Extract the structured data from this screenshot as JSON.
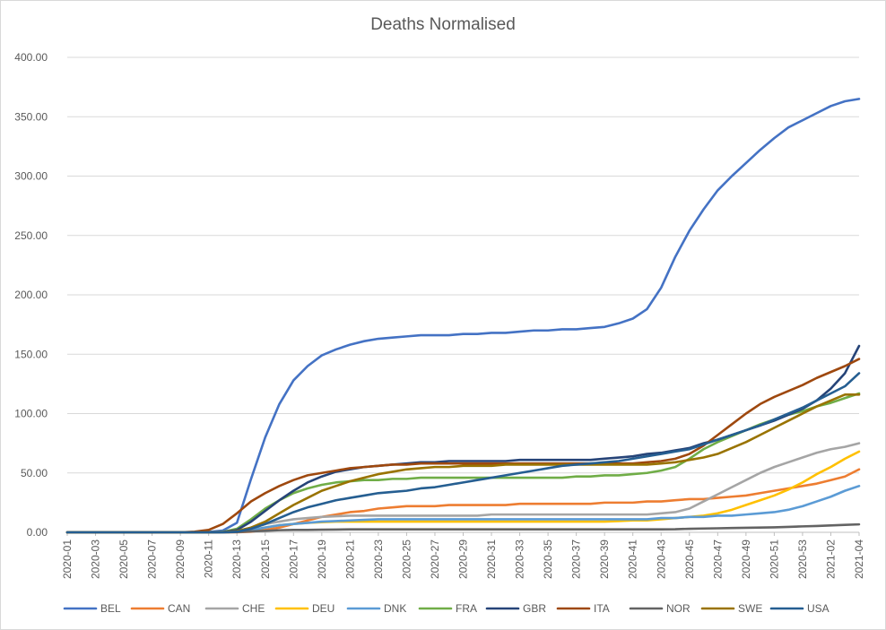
{
  "chart_data": {
    "type": "line",
    "title": "Deaths Normalised",
    "xlabel": "",
    "ylabel": "",
    "ylim": [
      0,
      400
    ],
    "y_ticks": [
      "0.00",
      "50.00",
      "100.00",
      "150.00",
      "200.00",
      "250.00",
      "300.00",
      "350.00",
      "400.00"
    ],
    "grid": "horizontal",
    "legend_position": "bottom",
    "x": [
      "2020-01",
      "2020-02",
      "2020-03",
      "2020-04",
      "2020-05",
      "2020-06",
      "2020-07",
      "2020-08",
      "2020-09",
      "2020-10",
      "2020-11",
      "2020-12",
      "2020-13",
      "2020-14",
      "2020-15",
      "2020-16",
      "2020-17",
      "2020-18",
      "2020-19",
      "2020-20",
      "2020-21",
      "2020-22",
      "2020-23",
      "2020-24",
      "2020-25",
      "2020-26",
      "2020-27",
      "2020-28",
      "2020-29",
      "2020-30",
      "2020-31",
      "2020-32",
      "2020-33",
      "2020-34",
      "2020-35",
      "2020-36",
      "2020-37",
      "2020-38",
      "2020-39",
      "2020-40",
      "2020-41",
      "2020-42",
      "2020-43",
      "2020-44",
      "2020-45",
      "2020-46",
      "2020-47",
      "2020-48",
      "2020-49",
      "2020-50",
      "2020-51",
      "2020-52",
      "2020-53",
      "2021-01",
      "2021-02",
      "2021-03",
      "2021-04"
    ],
    "x_tick_labels": [
      "2020-01",
      "2020-03",
      "2020-05",
      "2020-07",
      "2020-09",
      "2020-11",
      "2020-13",
      "2020-15",
      "2020-17",
      "2020-19",
      "2020-21",
      "2020-23",
      "2020-25",
      "2020-27",
      "2020-29",
      "2020-31",
      "2020-33",
      "2020-35",
      "2020-37",
      "2020-39",
      "2020-41",
      "2020-43",
      "2020-45",
      "2020-47",
      "2020-49",
      "2020-51",
      "2020-53",
      "2021-02",
      "2021-04"
    ],
    "series": [
      {
        "name": "BEL",
        "color": "#4472C4",
        "values": [
          0,
          0,
          0,
          0,
          0,
          0,
          0,
          0,
          0,
          0,
          0.3,
          1.5,
          8,
          45,
          80,
          108,
          128,
          140,
          149,
          154,
          158,
          161,
          163,
          164,
          165,
          166,
          166,
          166,
          167,
          167,
          168,
          168,
          169,
          170,
          170,
          171,
          171,
          172,
          173,
          176,
          180,
          188,
          206,
          232,
          254,
          272,
          288,
          300,
          311,
          322,
          332,
          341,
          347,
          353,
          359,
          363,
          365
        ]
      },
      {
        "name": "CAN",
        "color": "#ED7D31",
        "values": [
          0,
          0,
          0,
          0,
          0,
          0,
          0,
          0,
          0,
          0,
          0,
          0,
          0,
          0.5,
          2,
          4,
          7,
          10,
          13,
          15,
          17,
          18,
          20,
          21,
          22,
          22,
          22,
          23,
          23,
          23,
          23,
          23,
          24,
          24,
          24,
          24,
          24,
          24,
          25,
          25,
          25,
          26,
          26,
          27,
          28,
          28,
          29,
          30,
          31,
          33,
          35,
          37,
          39,
          41,
          44,
          47,
          53
        ]
      },
      {
        "name": "CHE",
        "color": "#A5A5A5",
        "values": [
          0,
          0,
          0,
          0,
          0,
          0,
          0,
          0,
          0,
          0,
          0,
          0.2,
          1,
          4,
          7,
          9,
          11,
          12,
          13,
          13.5,
          14,
          14,
          14,
          14,
          14,
          14,
          14,
          14,
          14,
          14,
          15,
          15,
          15,
          15,
          15,
          15,
          15,
          15,
          15,
          15,
          15,
          15,
          16,
          17,
          20,
          26,
          32,
          38,
          44,
          50,
          55,
          59,
          63,
          67,
          70,
          72,
          75
        ]
      },
      {
        "name": "DEU",
        "color": "#FFC000",
        "values": [
          0,
          0,
          0,
          0,
          0,
          0,
          0,
          0,
          0,
          0,
          0,
          0,
          0.5,
          2,
          4,
          6,
          7,
          8,
          8.5,
          9,
          9,
          9,
          9,
          9,
          9,
          9,
          9,
          9,
          9,
          9,
          9,
          9,
          9,
          9,
          9,
          9,
          9,
          9,
          9,
          9.5,
          10,
          10,
          11,
          12,
          13,
          14,
          16,
          19,
          23,
          27,
          31,
          36,
          42,
          49,
          55,
          62,
          68
        ]
      },
      {
        "name": "DNK",
        "color": "#5B9BD5",
        "values": [
          0,
          0,
          0,
          0,
          0,
          0,
          0,
          0,
          0,
          0,
          0,
          0,
          0.5,
          2,
          4,
          6,
          7,
          8,
          9,
          9.5,
          10,
          10.5,
          11,
          11,
          11,
          11,
          11,
          11,
          11,
          11,
          11,
          11,
          11,
          11,
          11,
          11,
          11,
          11,
          11,
          11,
          11,
          11,
          12,
          12,
          13,
          13,
          14,
          14,
          15,
          16,
          17,
          19,
          22,
          26,
          30,
          35,
          39
        ]
      },
      {
        "name": "FRA",
        "color": "#70AD47",
        "values": [
          0,
          0,
          0,
          0,
          0,
          0,
          0,
          0,
          0,
          0,
          0,
          0.3,
          3,
          11,
          20,
          27,
          33,
          37,
          40,
          42,
          43,
          44,
          44,
          45,
          45,
          46,
          46,
          46,
          46,
          46,
          46,
          46,
          46,
          46,
          46,
          46,
          47,
          47,
          48,
          48,
          49,
          50,
          52,
          55,
          62,
          70,
          76,
          81,
          86,
          91,
          95,
          99,
          102,
          106,
          109,
          113,
          117
        ]
      },
      {
        "name": "GBR",
        "color": "#264478",
        "values": [
          0,
          0,
          0,
          0,
          0,
          0,
          0,
          0,
          0,
          0,
          0,
          0.2,
          2,
          9,
          18,
          27,
          35,
          42,
          47,
          51,
          53,
          55,
          56,
          57,
          58,
          59,
          59,
          60,
          60,
          60,
          60,
          60,
          61,
          61,
          61,
          61,
          61,
          61,
          62,
          63,
          64,
          66,
          67,
          69,
          71,
          75,
          78,
          82,
          86,
          90,
          94,
          99,
          104,
          111,
          121,
          134,
          157
        ]
      },
      {
        "name": "ITA",
        "color": "#9E480E",
        "values": [
          0,
          0,
          0,
          0,
          0,
          0,
          0,
          0,
          0,
          0.5,
          2,
          7,
          16,
          26,
          33,
          39,
          44,
          48,
          50,
          52,
          54,
          55,
          56,
          57,
          57,
          58,
          58,
          58,
          58,
          58,
          58,
          58,
          58,
          58,
          58,
          58,
          58,
          58,
          58,
          58,
          58,
          59,
          60,
          62,
          66,
          73,
          82,
          91,
          100,
          108,
          114,
          119,
          124,
          130,
          135,
          140,
          146
        ]
      },
      {
        "name": "NOR",
        "color": "#636363",
        "values": [
          0,
          0,
          0,
          0,
          0,
          0,
          0,
          0,
          0,
          0,
          0,
          0,
          0.2,
          0.8,
          1.3,
          1.8,
          2,
          2,
          2.2,
          2.3,
          2.5,
          2.5,
          2.5,
          2.5,
          2.5,
          2.5,
          2.5,
          2.5,
          2.5,
          2.5,
          2.5,
          2.5,
          2.5,
          2.5,
          2.5,
          2.5,
          2.5,
          2.5,
          2.5,
          2.5,
          2.5,
          2.5,
          2.5,
          2.6,
          3,
          3.2,
          3.4,
          3.6,
          3.8,
          4,
          4.2,
          4.6,
          5,
          5.3,
          5.8,
          6.3,
          6.7
        ]
      },
      {
        "name": "SWE",
        "color": "#997300",
        "values": [
          0,
          0,
          0,
          0,
          0,
          0,
          0,
          0,
          0,
          0,
          0,
          0.2,
          1,
          4,
          9,
          16,
          23,
          29,
          35,
          39,
          43,
          46,
          49,
          51,
          53,
          54,
          55,
          55,
          56,
          56,
          56,
          57,
          57,
          57,
          57,
          57,
          57,
          57,
          57,
          57,
          57,
          57,
          58,
          59,
          61,
          63,
          66,
          71,
          76,
          82,
          88,
          94,
          100,
          106,
          111,
          116,
          116
        ]
      },
      {
        "name": "USA",
        "color": "#255E91",
        "values": [
          0,
          0,
          0,
          0,
          0,
          0,
          0,
          0,
          0,
          0,
          0,
          0,
          0.5,
          3,
          7,
          12,
          17,
          21,
          24,
          27,
          29,
          31,
          33,
          34,
          35,
          37,
          38,
          40,
          42,
          44,
          46,
          48,
          50,
          52,
          54,
          56,
          57,
          58,
          59,
          60,
          62,
          64,
          66,
          68,
          70,
          74,
          78,
          82,
          86,
          90,
          95,
          100,
          105,
          111,
          117,
          123,
          134
        ]
      }
    ]
  }
}
